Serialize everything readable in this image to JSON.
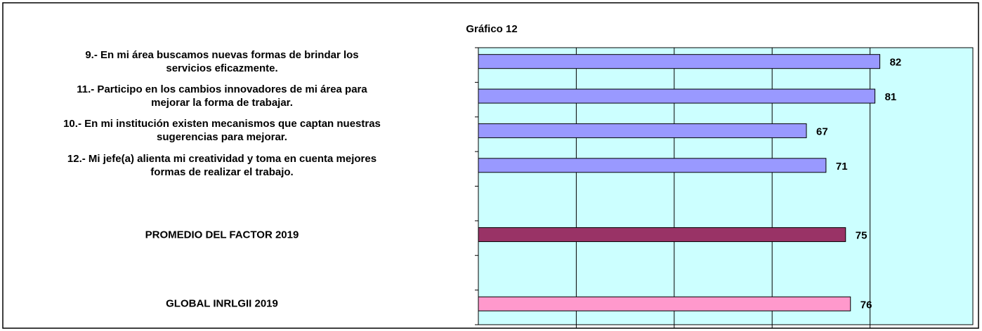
{
  "chart_data": {
    "type": "bar",
    "orientation": "horizontal",
    "title": "Gráfico 12",
    "categories": [
      "9.- En mi área buscamos nuevas formas de brindar los\nservicios eficazmente.",
      "11.- Participo en los cambios innovadores de mi área para\nmejorar la forma de trabajar.",
      "10.- En mi institución existen mecanismos que captan nuestras\nsugerencias para mejorar.",
      "12.- Mi jefe(a) alienta mi creatividad y toma en cuenta mejores\nformas de realizar el trabajo.",
      null,
      "PROMEDIO DEL FACTOR   2019",
      null,
      "GLOBAL INRLGII  2019"
    ],
    "values": [
      82,
      81,
      67,
      71,
      null,
      75,
      null,
      76
    ],
    "colors": [
      "#9999ff",
      "#9999ff",
      "#9999ff",
      "#9999ff",
      null,
      "#993366",
      null,
      "#ff99cc"
    ],
    "xlim": [
      0,
      101
    ],
    "xticks": [
      20,
      40,
      60,
      80
    ],
    "grid": true,
    "plot_background": "#ccffff"
  }
}
